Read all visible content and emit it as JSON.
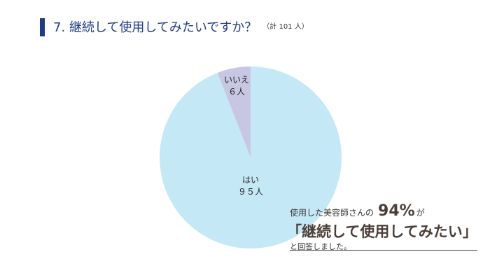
{
  "question": {
    "title": "7. 継続して使用してみたいですか？",
    "count": "（計 101 人）"
  },
  "chart_data": {
    "type": "pie",
    "title": "7. 継続して使用してみたいですか？",
    "total": 101,
    "unit": "人",
    "slices": [
      {
        "label": "はい",
        "value": 95,
        "value_text": "９５人",
        "color": "#c5e8f7"
      },
      {
        "label": "いいえ",
        "value": 6,
        "value_text": "６人",
        "color": "#c7c7e3"
      }
    ]
  },
  "callout": {
    "line1_pre": "使用した美容師さんの",
    "percent": "94%",
    "line1_post": "が",
    "line2": "「継続して使用してみたい」",
    "line3": "と回答しました。"
  }
}
